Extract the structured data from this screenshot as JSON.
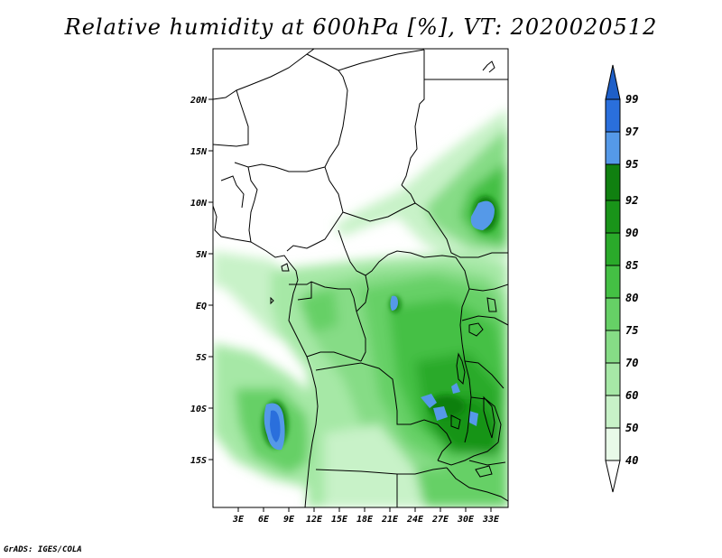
{
  "title": "Relative humidity at 600hPa [%], VT: 2020020512",
  "credit": "GrADS: IGES/COLA",
  "map": {
    "lon_range": [
      0,
      35
    ],
    "lat_range": [
      -20,
      24
    ],
    "lat_ticks": [
      "20N",
      "15N",
      "10N",
      "5N",
      "EQ",
      "5S",
      "10S",
      "15S"
    ],
    "lon_ticks": [
      "3E",
      "6E",
      "9E",
      "12E",
      "15E",
      "18E",
      "21E",
      "24E",
      "27E",
      "30E",
      "33E"
    ]
  },
  "colorbar": {
    "levels": [
      "40",
      "50",
      "60",
      "70",
      "75",
      "80",
      "85",
      "90",
      "92",
      "95",
      "97",
      "99"
    ],
    "colors": [
      "#ffffff",
      "#e8fae8",
      "#c8f2c8",
      "#a6e8a6",
      "#86dc86",
      "#66d066",
      "#44c044",
      "#2aaa2a",
      "#199419",
      "#108010",
      "#5599e8",
      "#2a6fdc",
      "#1e5fc8"
    ]
  },
  "icons": {
    "map": "africa-country-borders"
  }
}
